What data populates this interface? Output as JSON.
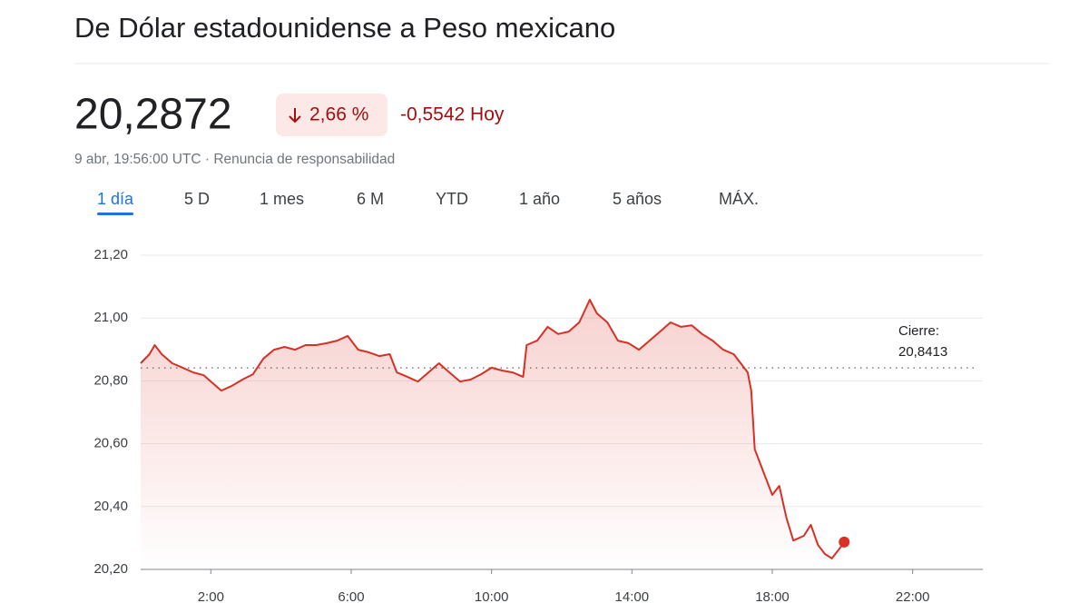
{
  "header": {
    "title": "De Dólar estadounidense a Peso mexicano"
  },
  "quote": {
    "price": "20,2872",
    "change_percent": "2,66 %",
    "change": "-0,5542 Hoy",
    "timestamp": "9 abr, 19:56:00 UTC · Renuncia de responsabilidad"
  },
  "tabs": {
    "items": [
      "1 día",
      "5 D",
      "1 mes",
      "6 M",
      "YTD",
      "1 año",
      "5 años",
      "MÁX."
    ],
    "selected": 0
  },
  "chart_data": {
    "type": "line",
    "color": "#d93025",
    "x": [
      0,
      0.25,
      0.4,
      0.6,
      0.9,
      1.2,
      1.5,
      1.8,
      2.0,
      2.3,
      2.6,
      2.9,
      3.2,
      3.5,
      3.8,
      4.1,
      4.4,
      4.7,
      5.0,
      5.3,
      5.6,
      5.9,
      6.2,
      6.5,
      6.8,
      7.1,
      7.3,
      7.6,
      7.9,
      8.2,
      8.5,
      8.8,
      9.1,
      9.4,
      9.7,
      10.0,
      10.3,
      10.6,
      10.9,
      11.0,
      11.3,
      11.6,
      11.9,
      12.2,
      12.5,
      12.8,
      13.0,
      13.3,
      13.6,
      13.9,
      14.2,
      14.5,
      14.8,
      15.1,
      15.4,
      15.7,
      16.0,
      16.3,
      16.6,
      16.9,
      17.1,
      17.3,
      17.4,
      17.5,
      17.7,
      18.0,
      18.2,
      18.4,
      18.6,
      18.9,
      19.1,
      19.3,
      19.5,
      19.7,
      19.9,
      20.05
    ],
    "values": [
      20.856,
      20.885,
      20.914,
      20.885,
      20.856,
      20.842,
      20.827,
      20.818,
      20.798,
      20.769,
      20.784,
      20.804,
      20.821,
      20.871,
      20.899,
      20.908,
      20.899,
      20.914,
      20.914,
      20.92,
      20.928,
      20.943,
      20.899,
      20.891,
      20.879,
      20.885,
      20.827,
      20.813,
      20.798,
      20.827,
      20.856,
      20.827,
      20.798,
      20.804,
      20.821,
      20.842,
      20.833,
      20.827,
      20.813,
      20.914,
      20.928,
      20.972,
      20.949,
      20.957,
      20.986,
      21.058,
      21.015,
      20.986,
      20.928,
      20.92,
      20.899,
      20.928,
      20.957,
      20.986,
      20.972,
      20.977,
      20.949,
      20.928,
      20.899,
      20.885,
      20.856,
      20.827,
      20.769,
      20.582,
      20.524,
      20.437,
      20.466,
      20.365,
      20.292,
      20.307,
      20.342,
      20.278,
      20.249,
      20.235,
      20.264,
      20.2872
    ],
    "xlim": [
      0,
      24
    ],
    "xticks": [
      {
        "value": 2,
        "label": "2:00"
      },
      {
        "value": 6,
        "label": "6:00"
      },
      {
        "value": 10,
        "label": "10:00"
      },
      {
        "value": 14,
        "label": "14:00"
      },
      {
        "value": 18,
        "label": "18:00"
      },
      {
        "value": 22,
        "label": "22:00"
      }
    ],
    "ylim": [
      20.2,
      21.2
    ],
    "yticks": [
      {
        "value": 20.2,
        "label": "20,20"
      },
      {
        "value": 20.4,
        "label": "20,40"
      },
      {
        "value": 20.6,
        "label": "20,60"
      },
      {
        "value": 20.8,
        "label": "20,80"
      },
      {
        "value": 21.0,
        "label": "21,00"
      },
      {
        "value": 21.2,
        "label": "21,20"
      }
    ],
    "grid": true,
    "reference": {
      "label": "Cierre:",
      "value": 20.8413,
      "value_label": "20,8413"
    }
  }
}
